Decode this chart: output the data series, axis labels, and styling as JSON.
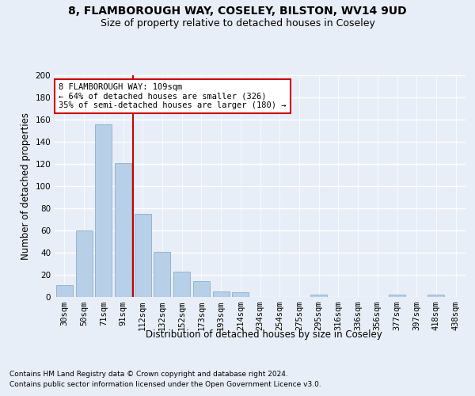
{
  "title_line1": "8, FLAMBOROUGH WAY, COSELEY, BILSTON, WV14 9UD",
  "title_line2": "Size of property relative to detached houses in Coseley",
  "xlabel": "Distribution of detached houses by size in Coseley",
  "ylabel": "Number of detached properties",
  "categories": [
    "30sqm",
    "50sqm",
    "71sqm",
    "91sqm",
    "112sqm",
    "132sqm",
    "152sqm",
    "173sqm",
    "193sqm",
    "214sqm",
    "234sqm",
    "254sqm",
    "275sqm",
    "295sqm",
    "316sqm",
    "336sqm",
    "356sqm",
    "377sqm",
    "397sqm",
    "418sqm",
    "438sqm"
  ],
  "values": [
    11,
    60,
    156,
    121,
    75,
    41,
    23,
    14,
    5,
    4,
    0,
    0,
    0,
    2,
    0,
    0,
    0,
    2,
    0,
    2,
    0
  ],
  "bar_color": "#b8cfe8",
  "bar_edge_color": "#8aaecc",
  "ylim": [
    0,
    200
  ],
  "yticks": [
    0,
    20,
    40,
    60,
    80,
    100,
    120,
    140,
    160,
    180,
    200
  ],
  "vline_color": "#cc0000",
  "annotation_text": "8 FLAMBOROUGH WAY: 109sqm\n← 64% of detached houses are smaller (326)\n35% of semi-detached houses are larger (180) →",
  "annotation_box_color": "#ffffff",
  "annotation_box_edge": "#cc0000",
  "footnote1": "Contains HM Land Registry data © Crown copyright and database right 2024.",
  "footnote2": "Contains public sector information licensed under the Open Government Licence v3.0.",
  "background_color": "#e8eef7",
  "plot_bg_color": "#e8eef7",
  "grid_color": "#ffffff",
  "title_fontsize": 10,
  "subtitle_fontsize": 9,
  "axis_label_fontsize": 8.5,
  "tick_fontsize": 7.5,
  "footnote_fontsize": 6.5
}
